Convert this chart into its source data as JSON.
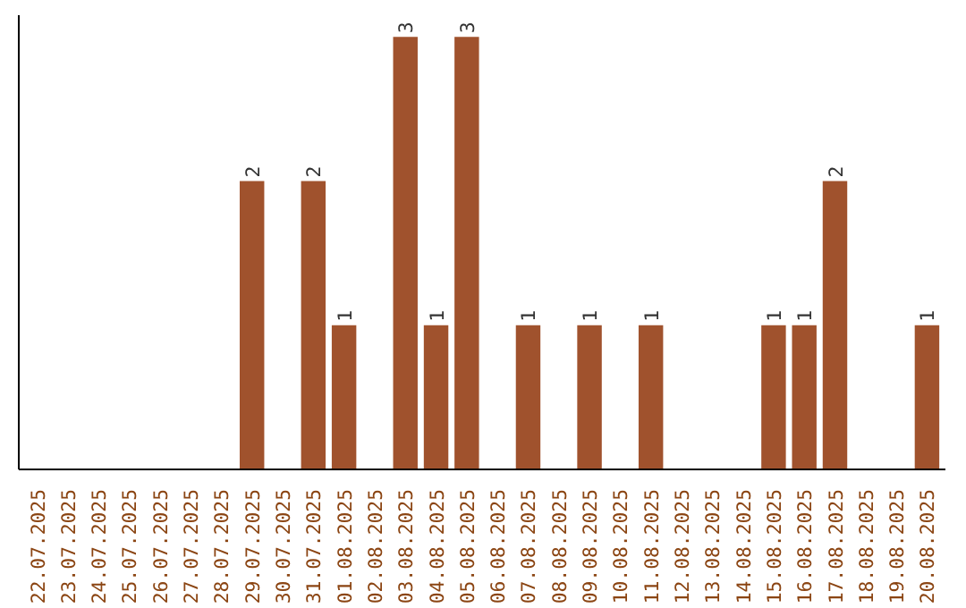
{
  "chart_data": {
    "type": "bar",
    "categories": [
      "22.07.2025",
      "23.07.2025",
      "24.07.2025",
      "25.07.2025",
      "26.07.2025",
      "27.07.2025",
      "28.07.2025",
      "29.07.2025",
      "30.07.2025",
      "31.07.2025",
      "01.08.2025",
      "02.08.2025",
      "03.08.2025",
      "04.08.2025",
      "05.08.2025",
      "06.08.2025",
      "07.08.2025",
      "08.08.2025",
      "09.08.2025",
      "10.08.2025",
      "11.08.2025",
      "12.08.2025",
      "13.08.2025",
      "14.08.2025",
      "15.08.2025",
      "16.08.2025",
      "17.08.2025",
      "18.08.2025",
      "19.08.2025",
      "20.08.2025"
    ],
    "values": [
      0,
      0,
      0,
      0,
      0,
      0,
      0,
      2,
      0,
      2,
      1,
      0,
      3,
      1,
      3,
      0,
      1,
      0,
      1,
      0,
      1,
      0,
      0,
      0,
      1,
      1,
      2,
      0,
      0,
      1
    ],
    "value_labels": [
      null,
      null,
      null,
      null,
      null,
      null,
      null,
      "2",
      null,
      "2",
      "1",
      null,
      "3",
      "1",
      "3",
      null,
      "1",
      null,
      "1",
      null,
      "1",
      null,
      null,
      null,
      "1",
      "1",
      "2",
      null,
      null,
      "1"
    ],
    "color": "#a0522d",
    "grid": false
  }
}
